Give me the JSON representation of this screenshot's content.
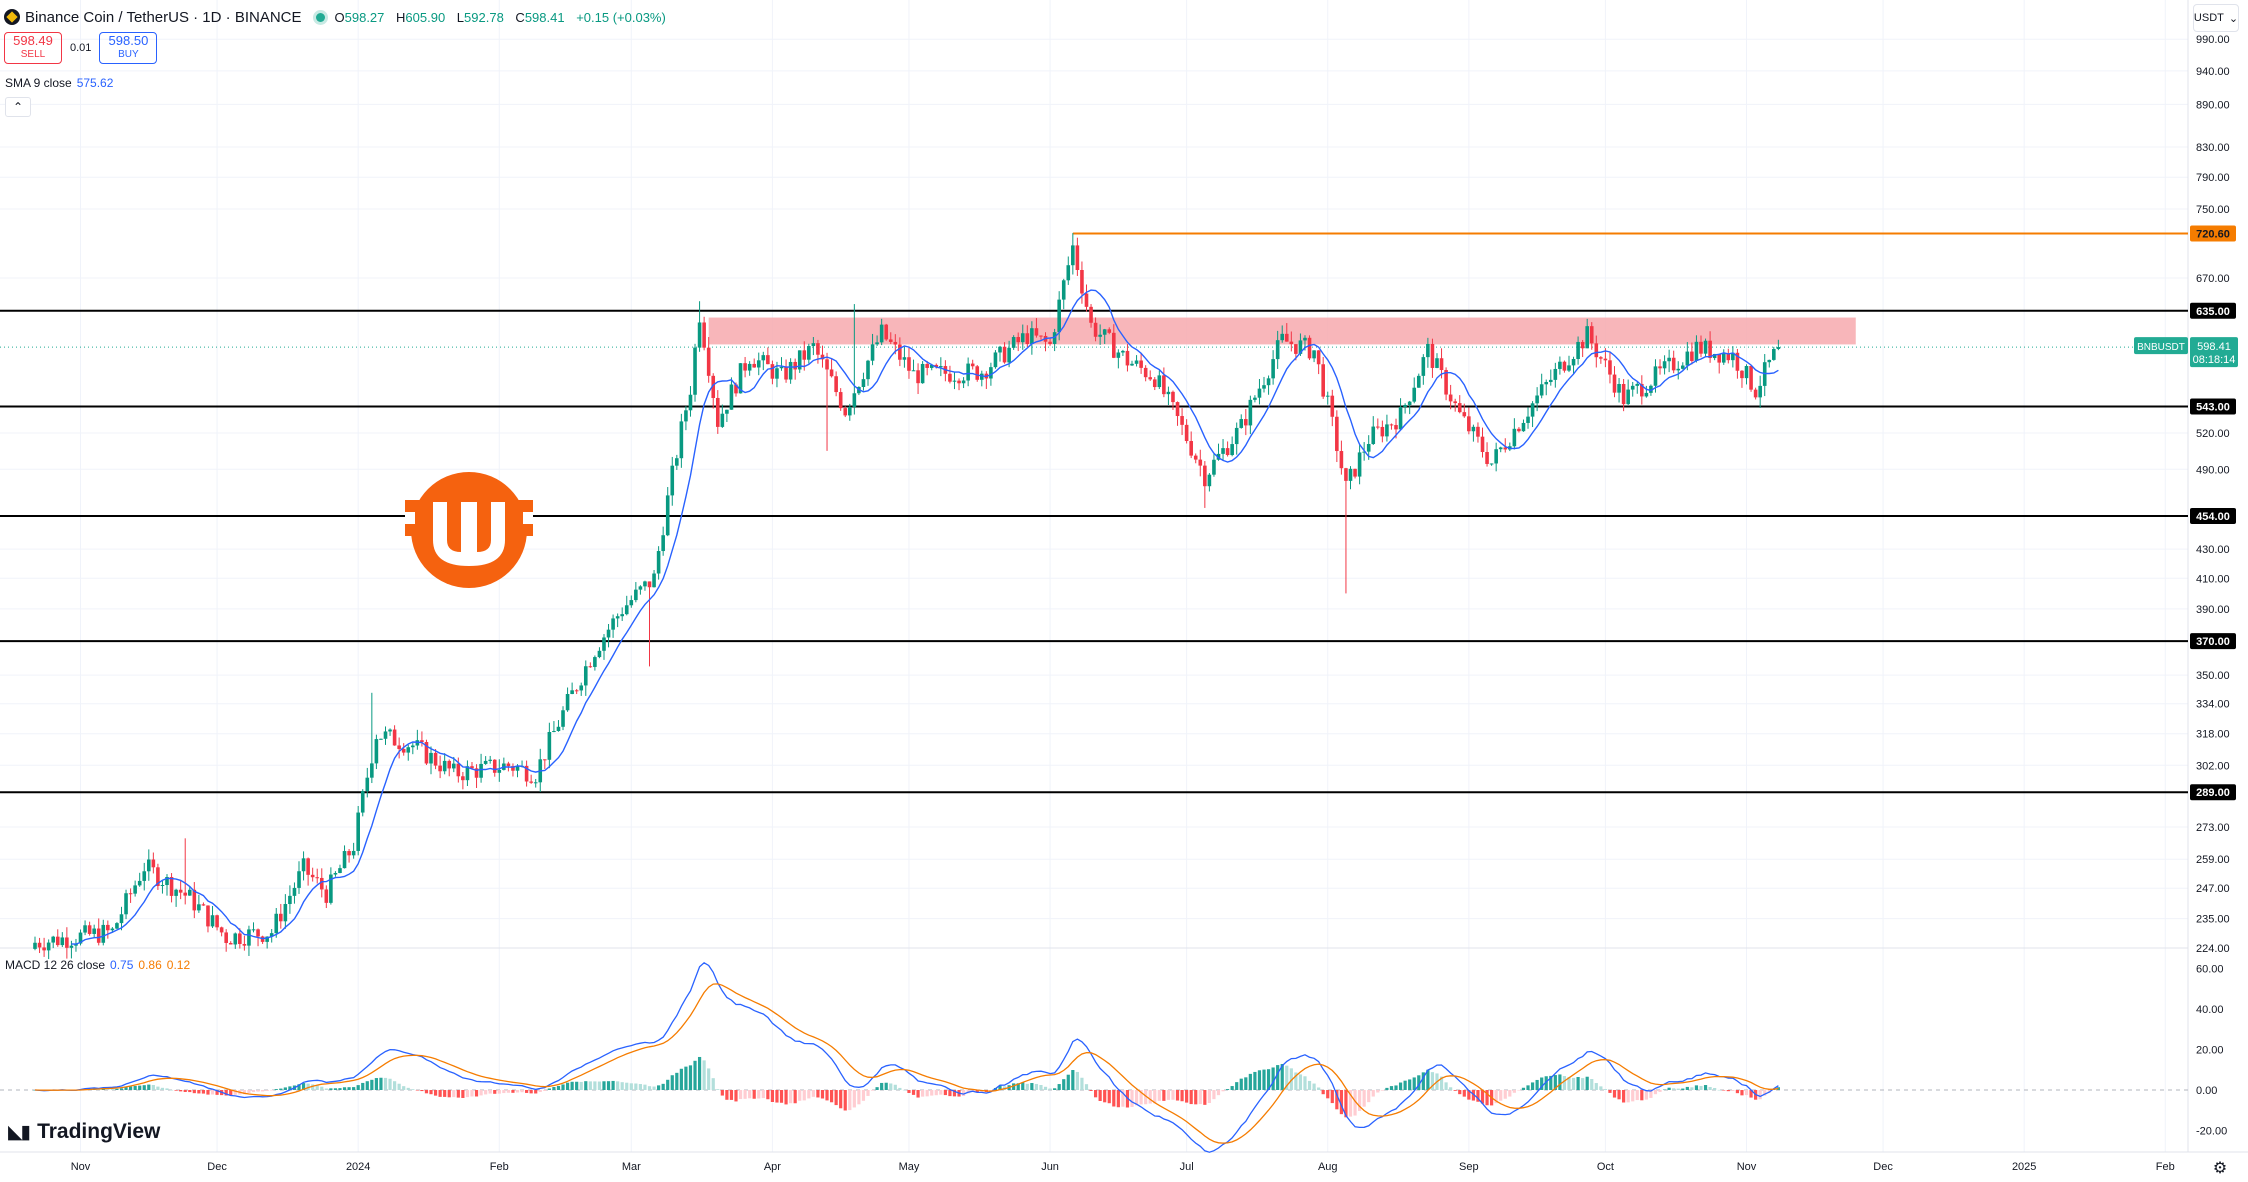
{
  "header": {
    "symbol_title": "Binance Coin / TetherUS · 1D · BINANCE",
    "ohlc": {
      "o_label": "O",
      "o": "598.27",
      "h_label": "H",
      "h": "605.90",
      "l_label": "L",
      "l": "592.78",
      "c_label": "C",
      "c": "598.41",
      "change": "+0.15 (+0.03%)"
    }
  },
  "trade": {
    "sell_price": "598.49",
    "sell_label": "SELL",
    "spread": "0.01",
    "buy_price": "598.50",
    "buy_label": "BUY"
  },
  "indicators": {
    "sma": {
      "label": "SMA 9 close",
      "value": "575.62"
    },
    "macd": {
      "label": "MACD 12 26 close",
      "macd": "0.75",
      "signal": "0.86",
      "hist": "0.12"
    }
  },
  "price_axis": {
    "currency": "USDT",
    "ticks": [
      "990.00",
      "940.00",
      "890.00",
      "830.00",
      "790.00",
      "750.00",
      "670.00",
      "520.00",
      "490.00",
      "430.00",
      "410.00",
      "390.00",
      "350.00",
      "334.00",
      "318.00",
      "302.00",
      "273.00",
      "259.00",
      "247.00",
      "235.00",
      "224.00"
    ],
    "level_labels": [
      "720.60",
      "635.00",
      "543.00",
      "454.00",
      "370.00",
      "289.00"
    ],
    "current_symbol": "BNBUSDT",
    "current_price": "598.41",
    "countdown": "08:18:14"
  },
  "macd_axis": {
    "ticks": [
      "60.00",
      "40.00",
      "20.00",
      "0.00",
      "-20.00"
    ]
  },
  "time_axis": {
    "labels": [
      "Nov",
      "Dec",
      "2024",
      "Feb",
      "Mar",
      "Apr",
      "May",
      "Jun",
      "Jul",
      "Aug",
      "Sep",
      "Oct",
      "Nov",
      "Dec",
      "2025",
      "Feb"
    ]
  },
  "branding": {
    "logo_text": "TradingView"
  },
  "colors": {
    "up": "#089981",
    "down": "#f23645",
    "sma": "#2962ff",
    "signal": "#f57c00",
    "level": "#000000",
    "ath_line": "#f57c00",
    "zone": "#f7a9ae",
    "brand_orange": "#f5620f"
  },
  "chart_data": {
    "type": "candlestick",
    "symbol": "BNBUSDT",
    "interval": "1D",
    "price_range": [
      220,
      1000
    ],
    "macd_range": [
      -25,
      65
    ],
    "horizontal_levels": [
      635,
      543,
      454,
      370,
      289
    ],
    "ath_line": 720.6,
    "resistance_zone": [
      601,
      628
    ],
    "segments": [
      {
        "start": "2023-10-22",
        "end": "2023-11-08",
        "from": 226,
        "to": 230
      },
      {
        "start": "2023-11-08",
        "end": "2023-11-15",
        "from": 230,
        "to": 256
      },
      {
        "start": "2023-11-15",
        "end": "2023-11-25",
        "from": 256,
        "to": 243
      },
      {
        "start": "2023-11-25",
        "end": "2023-12-03",
        "from": 243,
        "to": 228
      },
      {
        "start": "2023-12-03",
        "end": "2023-12-13",
        "from": 228,
        "to": 230
      },
      {
        "start": "2023-12-13",
        "end": "2023-12-20",
        "from": 230,
        "to": 255
      },
      {
        "start": "2023-12-20",
        "end": "2023-12-25",
        "from": 255,
        "to": 245
      },
      {
        "start": "2023-12-25",
        "end": "2023-12-31",
        "from": 245,
        "to": 265
      },
      {
        "start": "2023-12-31",
        "end": "2024-01-05",
        "from": 265,
        "to": 318
      },
      {
        "start": "2024-01-05",
        "end": "2024-01-13",
        "from": 318,
        "to": 312
      },
      {
        "start": "2024-01-13",
        "end": "2024-01-22",
        "from": 312,
        "to": 298
      },
      {
        "start": "2024-01-22",
        "end": "2024-02-03",
        "from": 298,
        "to": 302
      },
      {
        "start": "2024-02-03",
        "end": "2024-02-09",
        "from": 302,
        "to": 298
      },
      {
        "start": "2024-02-09",
        "end": "2024-02-22",
        "from": 298,
        "to": 365
      },
      {
        "start": "2024-02-22",
        "end": "2024-02-28",
        "from": 365,
        "to": 390
      },
      {
        "start": "2024-02-28",
        "end": "2024-03-06",
        "from": 390,
        "to": 410
      },
      {
        "start": "2024-03-06",
        "end": "2024-03-14",
        "from": 410,
        "to": 560
      },
      {
        "start": "2024-03-14",
        "end": "2024-03-16",
        "from": 560,
        "to": 632
      },
      {
        "start": "2024-03-16",
        "end": "2024-03-20",
        "from": 632,
        "to": 530
      },
      {
        "start": "2024-03-20",
        "end": "2024-03-27",
        "from": 530,
        "to": 590
      },
      {
        "start": "2024-03-27",
        "end": "2024-04-03",
        "from": 590,
        "to": 570
      },
      {
        "start": "2024-04-03",
        "end": "2024-04-10",
        "from": 570,
        "to": 598
      },
      {
        "start": "2024-04-10",
        "end": "2024-04-17",
        "from": 598,
        "to": 540
      },
      {
        "start": "2024-04-17",
        "end": "2024-04-25",
        "from": 540,
        "to": 612
      },
      {
        "start": "2024-04-25",
        "end": "2024-05-02",
        "from": 612,
        "to": 572
      },
      {
        "start": "2024-05-02",
        "end": "2024-05-17",
        "from": 572,
        "to": 575
      },
      {
        "start": "2024-05-17",
        "end": "2024-05-27",
        "from": 575,
        "to": 610
      },
      {
        "start": "2024-05-27",
        "end": "2024-06-01",
        "from": 610,
        "to": 600
      },
      {
        "start": "2024-06-01",
        "end": "2024-06-06",
        "from": 600,
        "to": 705
      },
      {
        "start": "2024-06-06",
        "end": "2024-06-10",
        "from": 705,
        "to": 620
      },
      {
        "start": "2024-06-10",
        "end": "2024-06-18",
        "from": 620,
        "to": 585
      },
      {
        "start": "2024-06-18",
        "end": "2024-06-24",
        "from": 585,
        "to": 570
      },
      {
        "start": "2024-06-24",
        "end": "2024-07-05",
        "from": 570,
        "to": 485
      },
      {
        "start": "2024-07-05",
        "end": "2024-07-13",
        "from": 485,
        "to": 525
      },
      {
        "start": "2024-07-13",
        "end": "2024-07-22",
        "from": 525,
        "to": 605
      },
      {
        "start": "2024-07-22",
        "end": "2024-07-29",
        "from": 605,
        "to": 595
      },
      {
        "start": "2024-07-29",
        "end": "2024-08-05",
        "from": 595,
        "to": 475
      },
      {
        "start": "2024-08-05",
        "end": "2024-08-10",
        "from": 475,
        "to": 515
      },
      {
        "start": "2024-08-10",
        "end": "2024-08-17",
        "from": 515,
        "to": 535
      },
      {
        "start": "2024-08-17",
        "end": "2024-08-23",
        "from": 535,
        "to": 595
      },
      {
        "start": "2024-08-23",
        "end": "2024-08-30",
        "from": 595,
        "to": 535
      },
      {
        "start": "2024-08-30",
        "end": "2024-09-06",
        "from": 535,
        "to": 495
      },
      {
        "start": "2024-09-06",
        "end": "2024-09-14",
        "from": 495,
        "to": 540
      },
      {
        "start": "2024-09-14",
        "end": "2024-09-23",
        "from": 540,
        "to": 590
      },
      {
        "start": "2024-09-23",
        "end": "2024-09-27",
        "from": 590,
        "to": 610
      },
      {
        "start": "2024-09-27",
        "end": "2024-10-05",
        "from": 610,
        "to": 550
      },
      {
        "start": "2024-10-05",
        "end": "2024-10-13",
        "from": 550,
        "to": 573
      },
      {
        "start": "2024-10-13",
        "end": "2024-10-21",
        "from": 573,
        "to": 598
      },
      {
        "start": "2024-10-21",
        "end": "2024-10-29",
        "from": 598,
        "to": 590
      },
      {
        "start": "2024-10-29",
        "end": "2024-11-03",
        "from": 590,
        "to": 558
      },
      {
        "start": "2024-11-03",
        "end": "2024-11-08",
        "from": 558,
        "to": 598
      }
    ],
    "spikes": [
      {
        "date": "2023-11-24",
        "high": 268
      },
      {
        "date": "2024-01-04",
        "high": 340
      },
      {
        "date": "2024-03-05",
        "low": 355
      },
      {
        "date": "2024-03-16",
        "high": 645
      },
      {
        "date": "2024-04-13",
        "low": 505
      },
      {
        "date": "2024-04-19",
        "high": 642
      },
      {
        "date": "2024-06-06",
        "high": 721
      },
      {
        "date": "2024-07-05",
        "low": 460
      },
      {
        "date": "2024-08-05",
        "low": 400
      }
    ]
  }
}
